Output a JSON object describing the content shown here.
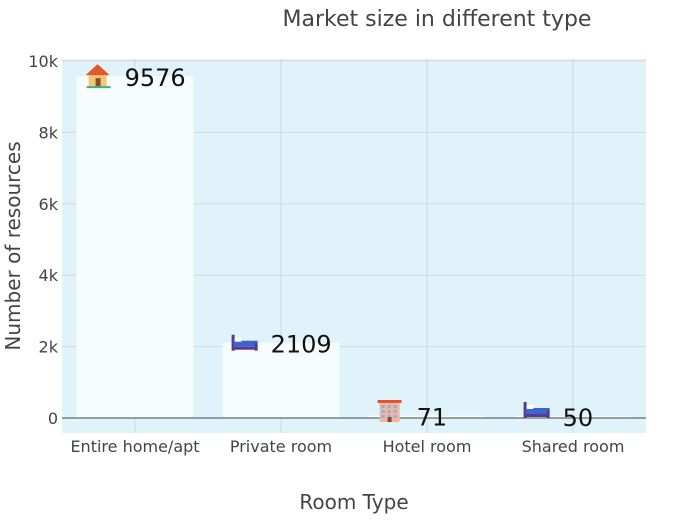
{
  "chart_data": {
    "type": "bar",
    "title": "Market size in different type",
    "xlabel": "Room Type",
    "ylabel": "Number of resources",
    "categories": [
      "Entire home/apt",
      "Private room",
      "Hotel room",
      "Shared room"
    ],
    "values": [
      9576,
      2109,
      71,
      50
    ],
    "data_labels": [
      "9576",
      "2109",
      "71",
      "50"
    ],
    "icons": [
      "house-icon",
      "bed-icon",
      "hotel-icon",
      "bed-icon"
    ],
    "ylim": [
      0,
      10000
    ],
    "yticks": [
      0,
      2000,
      4000,
      6000,
      8000,
      10000
    ],
    "ytick_labels": [
      "0",
      "2k",
      "4k",
      "6k",
      "8k",
      "10k"
    ],
    "grid": true,
    "colors": {
      "plot_background": "#e0f2fa",
      "bar_fill": "#f7fcfe",
      "gridline": "#cfd8de",
      "zero_line": "#444444"
    }
  }
}
